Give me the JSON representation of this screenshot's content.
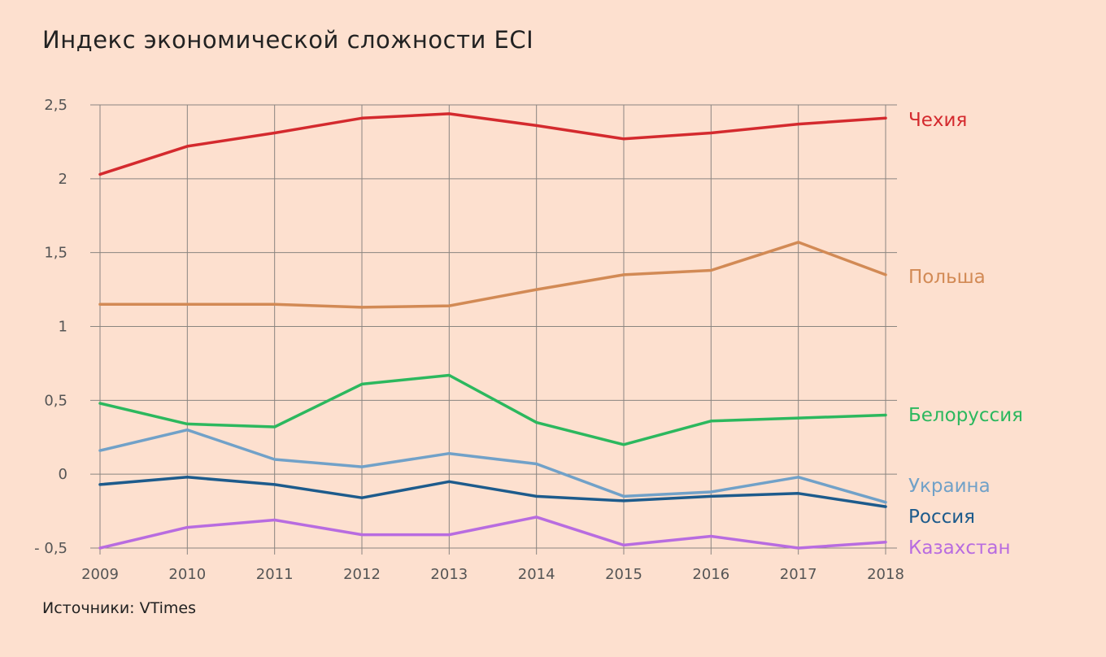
{
  "title": "Индекс экономической сложности ECI",
  "source": "Источники: VTimes",
  "chart_data": {
    "type": "line",
    "title": "Индекс экономической сложности ECI",
    "xlabel": "",
    "ylabel": "",
    "x": [
      2009,
      2010,
      2011,
      2012,
      2013,
      2014,
      2015,
      2016,
      2017,
      2018
    ],
    "x_tick_labels": [
      "2009",
      "2010",
      "2011",
      "2012",
      "2013",
      "2014",
      "2015",
      "2016",
      "2017",
      "2018"
    ],
    "ylim": [
      -0.5,
      2.5
    ],
    "y_ticks": [
      2.5,
      2,
      1.5,
      1,
      0.5,
      0,
      -0.5
    ],
    "y_tick_labels": [
      "2,5",
      "2",
      "1,5",
      "1",
      "0,5",
      "0",
      "- 0,5"
    ],
    "grid": true,
    "legend": "right, labels at line ends",
    "series": [
      {
        "name": "Чехия",
        "color": "#d42a2e",
        "values": [
          2.03,
          2.22,
          2.31,
          2.41,
          2.44,
          2.36,
          2.27,
          2.31,
          2.37,
          2.41
        ]
      },
      {
        "name": "Польша",
        "color": "#d28a55",
        "values": [
          1.15,
          1.15,
          1.15,
          1.13,
          1.14,
          1.25,
          1.35,
          1.38,
          1.57,
          1.35
        ]
      },
      {
        "name": "Белоруссия",
        "color": "#2cb85e",
        "values": [
          0.48,
          0.34,
          0.32,
          0.61,
          0.67,
          0.35,
          0.2,
          0.36,
          0.38,
          0.4
        ]
      },
      {
        "name": "Украина",
        "color": "#71a1c8",
        "values": [
          0.16,
          0.3,
          0.1,
          0.05,
          0.14,
          0.07,
          -0.15,
          -0.12,
          -0.02,
          -0.19
        ]
      },
      {
        "name": "Россия",
        "color": "#1d5b8c",
        "values": [
          -0.07,
          -0.02,
          -0.07,
          -0.16,
          -0.05,
          -0.15,
          -0.18,
          -0.15,
          -0.13,
          -0.22
        ]
      },
      {
        "name": "Казахстан",
        "color": "#b86ce0",
        "values": [
          -0.5,
          -0.36,
          -0.31,
          -0.41,
          -0.41,
          -0.29,
          -0.48,
          -0.42,
          -0.5,
          -0.46
        ]
      }
    ]
  }
}
